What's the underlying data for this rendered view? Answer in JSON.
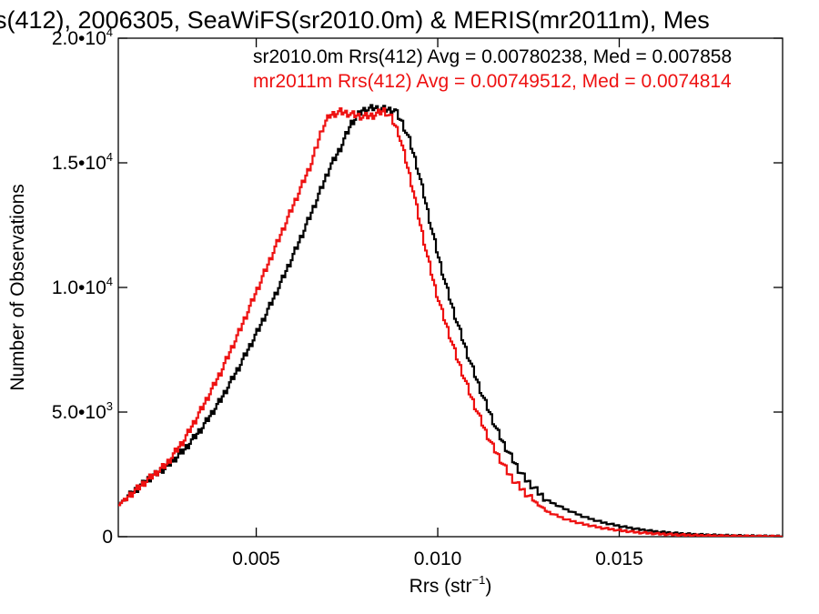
{
  "chart_data": {
    "type": "step",
    "title": "s(412), 2006305, SeaWiFS(sr2010.0m) & MERIS(mr2011m), Mes",
    "xlabel": "Rrs (str",
    "xlabel_sup": "−1",
    "xlabel_close": ")",
    "ylabel": "Number of Observations",
    "xlim": [
      0.0012,
      0.0195
    ],
    "ylim": [
      0,
      20000
    ],
    "grid": false,
    "legend_position": "top-right",
    "x_ticks": [
      {
        "value": 0.005,
        "label": "0.005"
      },
      {
        "value": 0.01,
        "label": "0.010"
      },
      {
        "value": 0.015,
        "label": "0.015"
      }
    ],
    "y_ticks": [
      {
        "value": 0,
        "mant": "0",
        "exp": ""
      },
      {
        "value": 5000,
        "mant": "5.0•10",
        "exp": "3"
      },
      {
        "value": 10000,
        "mant": "1.0•10",
        "exp": "4"
      },
      {
        "value": 15000,
        "mant": "1.5•10",
        "exp": "4"
      },
      {
        "value": 20000,
        "mant": "2.0•10",
        "exp": "4"
      }
    ],
    "series": [
      {
        "name": "sr2010.0m",
        "legend": "sr2010.0m Rrs(412) Avg = 0.00780238, Med = 0.007858",
        "color": "#000000",
        "x": [
          0.0012,
          0.002,
          0.0025,
          0.003,
          0.0035,
          0.004,
          0.0045,
          0.005,
          0.0055,
          0.006,
          0.0065,
          0.007,
          0.0073,
          0.0076,
          0.0079,
          0.0082,
          0.0085,
          0.0088,
          0.009,
          0.0092,
          0.0094,
          0.0096,
          0.0098,
          0.01,
          0.0102,
          0.0104,
          0.0106,
          0.0108,
          0.011,
          0.0112,
          0.0114,
          0.0116,
          0.0118,
          0.012,
          0.0122,
          0.0124,
          0.0126,
          0.0128,
          0.013,
          0.0135,
          0.014,
          0.0145,
          0.015,
          0.0155,
          0.016,
          0.0165,
          0.017,
          0.0175,
          0.018,
          0.0185,
          0.019,
          0.0195
        ],
        "y": [
          1300,
          2300,
          2800,
          3500,
          4400,
          5500,
          6800,
          8200,
          9700,
          11300,
          13000,
          14800,
          15600,
          16600,
          17100,
          17200,
          17150,
          17100,
          16600,
          15900,
          14900,
          13700,
          12400,
          11200,
          10100,
          9100,
          8200,
          7300,
          6500,
          5700,
          5000,
          4300,
          3700,
          3200,
          2700,
          2300,
          2000,
          1700,
          1450,
          1100,
          800,
          580,
          420,
          300,
          200,
          140,
          90,
          60,
          40,
          25,
          15,
          8
        ]
      },
      {
        "name": "mr2011m",
        "legend": "mr2011m Rrs(412) Avg = 0.00749512, Med = 0.0074814",
        "color": "#ee1111",
        "x": [
          0.0012,
          0.002,
          0.0025,
          0.003,
          0.0035,
          0.004,
          0.0045,
          0.005,
          0.0055,
          0.006,
          0.0065,
          0.0068,
          0.007,
          0.0073,
          0.0076,
          0.0079,
          0.0082,
          0.0085,
          0.0087,
          0.0089,
          0.0091,
          0.0093,
          0.0095,
          0.0097,
          0.0099,
          0.0101,
          0.0103,
          0.0105,
          0.0107,
          0.0109,
          0.0111,
          0.0113,
          0.0115,
          0.0117,
          0.0119,
          0.0121,
          0.0123,
          0.0125,
          0.0127,
          0.013,
          0.0135,
          0.014,
          0.0145,
          0.015,
          0.0155,
          0.016,
          0.0165,
          0.017,
          0.0175,
          0.018,
          0.0185,
          0.019,
          0.0195
        ],
        "y": [
          1300,
          2300,
          2900,
          3900,
          5200,
          6600,
          8200,
          9900,
          11600,
          13300,
          15000,
          16400,
          16900,
          17050,
          16950,
          16850,
          16900,
          17100,
          16800,
          16200,
          15100,
          13900,
          12500,
          11200,
          10000,
          9000,
          8100,
          7200,
          6400,
          5600,
          4900,
          4200,
          3600,
          3100,
          2600,
          2200,
          1900,
          1600,
          1350,
          1000,
          700,
          500,
          350,
          250,
          170,
          120,
          80,
          55,
          35,
          22,
          14,
          8,
          5
        ]
      }
    ]
  }
}
